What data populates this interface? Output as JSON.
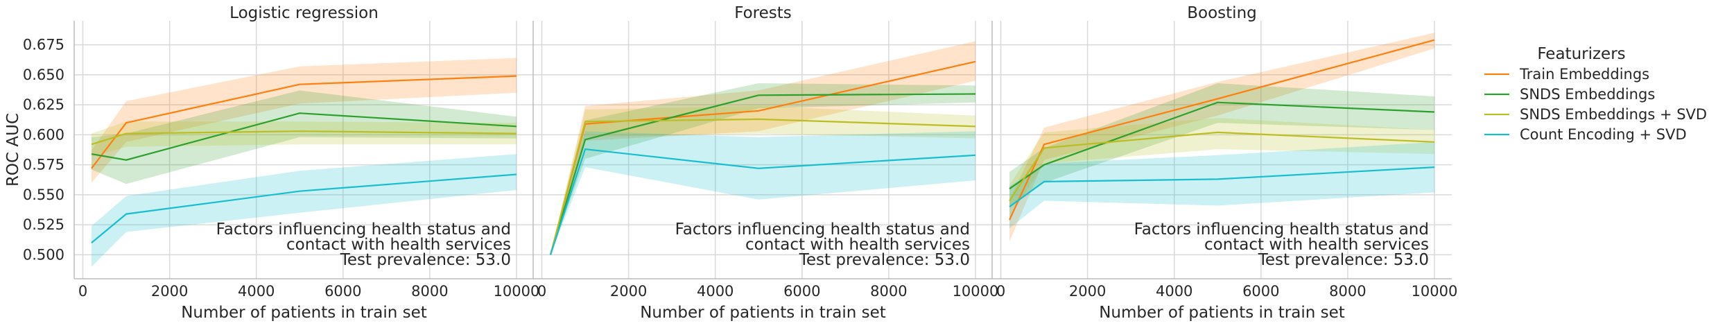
{
  "chart_data": {
    "type": "line",
    "ylabel": "ROC AUC",
    "xlabel": "Number of patients in train set",
    "xlim": [
      -200,
      10400
    ],
    "ylim": [
      0.48,
      0.695
    ],
    "xticks": [
      0,
      2000,
      4000,
      6000,
      8000,
      10000
    ],
    "yticks": [
      0.5,
      0.525,
      0.55,
      0.575,
      0.6,
      0.625,
      0.65,
      0.675
    ],
    "xtick_labels": [
      "0",
      "2000",
      "4000",
      "6000",
      "8000",
      "10000"
    ],
    "ytick_labels": [
      "0.500",
      "0.525",
      "0.550",
      "0.575",
      "0.600",
      "0.625",
      "0.650",
      "0.675"
    ],
    "grid": true,
    "legend": {
      "title": "Featurizers",
      "placement": "right",
      "entries": [
        {
          "label": "Train Embeddings",
          "color": "#ff7f0e"
        },
        {
          "label": "SNDS Embeddings",
          "color": "#2ca02c"
        },
        {
          "label": "SNDS Embeddings + SVD",
          "color": "#bcbd22"
        },
        {
          "label": "Count Encoding + SVD",
          "color": "#17becf"
        }
      ]
    },
    "panels": [
      {
        "title": "Logistic regression",
        "annotation": [
          "Factors influencing health status and",
          "contact with health services",
          "Test prevalence: 53.0"
        ],
        "series": [
          {
            "label": "Train Embeddings",
            "x": [
              200,
              1000,
              5000,
              10000
            ],
            "y": [
              0.572,
              0.61,
              0.642,
              0.649
            ],
            "lo": [
              0.56,
              0.594,
              0.626,
              0.635
            ],
            "hi": [
              0.587,
              0.628,
              0.657,
              0.664
            ]
          },
          {
            "label": "SNDS Embeddings",
            "x": [
              200,
              1000,
              5000,
              10000
            ],
            "y": [
              0.584,
              0.579,
              0.618,
              0.607
            ],
            "lo": [
              0.571,
              0.559,
              0.598,
              0.597
            ],
            "hi": [
              0.598,
              0.601,
              0.637,
              0.615
            ]
          },
          {
            "label": "SNDS Embeddings + SVD",
            "x": [
              200,
              1000,
              5000,
              10000
            ],
            "y": [
              0.592,
              0.601,
              0.603,
              0.601
            ],
            "lo": [
              0.582,
              0.59,
              0.592,
              0.592
            ],
            "hi": [
              0.601,
              0.611,
              0.611,
              0.61
            ]
          },
          {
            "label": "Count Encoding + SVD",
            "x": [
              200,
              1000,
              5000,
              10000
            ],
            "y": [
              0.51,
              0.534,
              0.553,
              0.567
            ],
            "lo": [
              0.49,
              0.519,
              0.535,
              0.554
            ],
            "hi": [
              0.524,
              0.549,
              0.57,
              0.584
            ]
          }
        ]
      },
      {
        "title": "Forests",
        "annotation": [
          "Factors influencing health status and",
          "contact with health services",
          "Test prevalence: 53.0"
        ],
        "series": [
          {
            "label": "Train Embeddings",
            "x": [
              200,
              1000,
              5000,
              10000
            ],
            "y": [
              0.5,
              0.609,
              0.62,
              0.661
            ],
            "lo": [
              0.5,
              0.595,
              0.603,
              0.645
            ],
            "hi": [
              0.5,
              0.624,
              0.637,
              0.678
            ]
          },
          {
            "label": "SNDS Embeddings",
            "x": [
              200,
              1000,
              5000,
              10000
            ],
            "y": [
              0.5,
              0.596,
              0.633,
              0.634
            ],
            "lo": [
              0.5,
              0.58,
              0.622,
              0.627
            ],
            "hi": [
              0.5,
              0.612,
              0.643,
              0.641
            ]
          },
          {
            "label": "SNDS Embeddings + SVD",
            "x": [
              200,
              1000,
              5000,
              10000
            ],
            "y": [
              0.5,
              0.611,
              0.613,
              0.607
            ],
            "lo": [
              0.5,
              0.598,
              0.601,
              0.597
            ],
            "hi": [
              0.5,
              0.621,
              0.624,
              0.616
            ]
          },
          {
            "label": "Count Encoding + SVD",
            "x": [
              200,
              1000,
              5000,
              10000
            ],
            "y": [
              0.5,
              0.588,
              0.572,
              0.583
            ],
            "lo": [
              0.5,
              0.573,
              0.546,
              0.562
            ],
            "hi": [
              0.5,
              0.603,
              0.598,
              0.603
            ]
          }
        ]
      },
      {
        "title": "Boosting",
        "annotation": [
          "Factors influencing health status and",
          "contact with health services",
          "Test prevalence: 53.0"
        ],
        "series": [
          {
            "label": "Train Embeddings",
            "x": [
              200,
              1000,
              5000,
              10000
            ],
            "y": [
              0.529,
              0.592,
              0.63,
              0.679
            ],
            "lo": [
              0.511,
              0.579,
              0.616,
              0.672
            ],
            "hi": [
              0.546,
              0.606,
              0.644,
              0.685
            ]
          },
          {
            "label": "SNDS Embeddings",
            "x": [
              200,
              1000,
              5000,
              10000
            ],
            "y": [
              0.555,
              0.575,
              0.627,
              0.619
            ],
            "lo": [
              0.541,
              0.56,
              0.61,
              0.604
            ],
            "hi": [
              0.569,
              0.589,
              0.643,
              0.632
            ]
          },
          {
            "label": "SNDS Embeddings + SVD",
            "x": [
              200,
              1000,
              5000,
              10000
            ],
            "y": [
              0.545,
              0.589,
              0.602,
              0.594
            ],
            "lo": [
              0.531,
              0.576,
              0.588,
              0.584
            ],
            "hi": [
              0.558,
              0.602,
              0.614,
              0.604
            ]
          },
          {
            "label": "Count Encoding + SVD",
            "x": [
              200,
              1000,
              5000,
              10000
            ],
            "y": [
              0.54,
              0.561,
              0.563,
              0.573
            ],
            "lo": [
              0.522,
              0.545,
              0.541,
              0.552
            ],
            "hi": [
              0.557,
              0.576,
              0.583,
              0.594
            ]
          }
        ]
      }
    ]
  }
}
